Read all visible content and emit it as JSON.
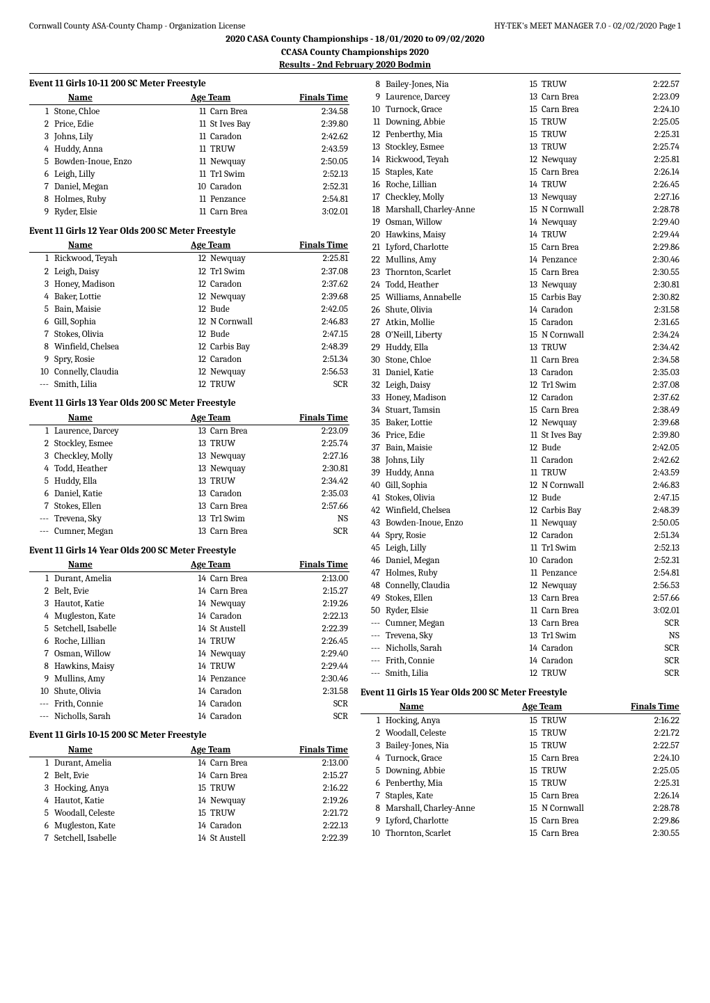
{
  "header": {
    "top_left": "Cornwall County ASA-County Champ - Organization License",
    "top_right": "HY-TEK's MEET MANAGER 7.0 - 02/02/2020  Page 1",
    "line1": "2020 CASA County Championships - 18/01/2020 to 09/02/2020",
    "line2": "CCASA County Championships 2020",
    "line3": "Results - 2nd February 2020 Bodmin"
  },
  "headers": {
    "name": "Name",
    "ageteam": "Age Team",
    "time": "Finals Time"
  },
  "left_events": [
    {
      "title": "Event 11  Girls 10-11 200 SC Meter Freestyle",
      "rows": [
        {
          "r": "1",
          "n": "Stone, Chloe",
          "a": "11",
          "t": "Carn Brea",
          "x": "2:34.58"
        },
        {
          "r": "2",
          "n": "Price, Edie",
          "a": "11",
          "t": "St Ives Bay",
          "x": "2:39.80"
        },
        {
          "r": "3",
          "n": "Johns, Lily",
          "a": "11",
          "t": "Caradon",
          "x": "2:42.62"
        },
        {
          "r": "4",
          "n": "Huddy, Anna",
          "a": "11",
          "t": "TRUW",
          "x": "2:43.59"
        },
        {
          "r": "5",
          "n": "Bowden-Inoue, Enzo",
          "a": "11",
          "t": "Newquay",
          "x": "2:50.05"
        },
        {
          "r": "6",
          "n": "Leigh, Lilly",
          "a": "11",
          "t": "Tr1 Swim",
          "x": "2:52.13"
        },
        {
          "r": "7",
          "n": "Daniel, Megan",
          "a": "10",
          "t": "Caradon",
          "x": "2:52.31"
        },
        {
          "r": "8",
          "n": "Holmes, Ruby",
          "a": "11",
          "t": "Penzance",
          "x": "2:54.81"
        },
        {
          "r": "9",
          "n": "Ryder, Elsie",
          "a": "11",
          "t": "Carn Brea",
          "x": "3:02.01"
        }
      ]
    },
    {
      "title": "Event 11  Girls 12 Year Olds 200 SC Meter Freestyle",
      "rows": [
        {
          "r": "1",
          "n": "Rickwood, Teyah",
          "a": "12",
          "t": "Newquay",
          "x": "2:25.81"
        },
        {
          "r": "2",
          "n": "Leigh, Daisy",
          "a": "12",
          "t": "Tr1 Swim",
          "x": "2:37.08"
        },
        {
          "r": "3",
          "n": "Honey, Madison",
          "a": "12",
          "t": "Caradon",
          "x": "2:37.62"
        },
        {
          "r": "4",
          "n": "Baker, Lottie",
          "a": "12",
          "t": "Newquay",
          "x": "2:39.68"
        },
        {
          "r": "5",
          "n": "Bain, Maisie",
          "a": "12",
          "t": "Bude",
          "x": "2:42.05"
        },
        {
          "r": "6",
          "n": "Gill, Sophia",
          "a": "12",
          "t": "N Cornwall",
          "x": "2:46.83"
        },
        {
          "r": "7",
          "n": "Stokes, Olivia",
          "a": "12",
          "t": "Bude",
          "x": "2:47.15"
        },
        {
          "r": "8",
          "n": "Winfield, Chelsea",
          "a": "12",
          "t": "Carbis Bay",
          "x": "2:48.39"
        },
        {
          "r": "9",
          "n": "Spry, Rosie",
          "a": "12",
          "t": "Caradon",
          "x": "2:51.34"
        },
        {
          "r": "10",
          "n": "Connelly, Claudia",
          "a": "12",
          "t": "Newquay",
          "x": "2:56.53"
        },
        {
          "r": "---",
          "n": "Smith, Lilia",
          "a": "12",
          "t": "TRUW",
          "x": "SCR"
        }
      ]
    },
    {
      "title": "Event 11  Girls 13 Year Olds 200 SC Meter Freestyle",
      "rows": [
        {
          "r": "1",
          "n": "Laurence, Darcey",
          "a": "13",
          "t": "Carn Brea",
          "x": "2:23.09"
        },
        {
          "r": "2",
          "n": "Stockley, Esmee",
          "a": "13",
          "t": "TRUW",
          "x": "2:25.74"
        },
        {
          "r": "3",
          "n": "Checkley, Molly",
          "a": "13",
          "t": "Newquay",
          "x": "2:27.16"
        },
        {
          "r": "4",
          "n": "Todd, Heather",
          "a": "13",
          "t": "Newquay",
          "x": "2:30.81"
        },
        {
          "r": "5",
          "n": "Huddy, Ella",
          "a": "13",
          "t": "TRUW",
          "x": "2:34.42"
        },
        {
          "r": "6",
          "n": "Daniel, Katie",
          "a": "13",
          "t": "Caradon",
          "x": "2:35.03"
        },
        {
          "r": "7",
          "n": "Stokes, Ellen",
          "a": "13",
          "t": "Carn Brea",
          "x": "2:57.66"
        },
        {
          "r": "---",
          "n": "Trevena, Sky",
          "a": "13",
          "t": "Tr1 Swim",
          "x": "NS"
        },
        {
          "r": "---",
          "n": "Cumner, Megan",
          "a": "13",
          "t": "Carn Brea",
          "x": "SCR"
        }
      ]
    },
    {
      "title": "Event 11  Girls 14 Year Olds 200 SC Meter Freestyle",
      "rows": [
        {
          "r": "1",
          "n": "Durant, Amelia",
          "a": "14",
          "t": "Carn Brea",
          "x": "2:13.00"
        },
        {
          "r": "2",
          "n": "Belt, Evie",
          "a": "14",
          "t": "Carn Brea",
          "x": "2:15.27"
        },
        {
          "r": "3",
          "n": "Hautot, Katie",
          "a": "14",
          "t": "Newquay",
          "x": "2:19.26"
        },
        {
          "r": "4",
          "n": "Mugleston, Kate",
          "a": "14",
          "t": "Caradon",
          "x": "2:22.13"
        },
        {
          "r": "5",
          "n": "Setchell, Isabelle",
          "a": "14",
          "t": "St Austell",
          "x": "2:22.39"
        },
        {
          "r": "6",
          "n": "Roche, Lillian",
          "a": "14",
          "t": "TRUW",
          "x": "2:26.45"
        },
        {
          "r": "7",
          "n": "Osman, Willow",
          "a": "14",
          "t": "Newquay",
          "x": "2:29.40"
        },
        {
          "r": "8",
          "n": "Hawkins, Maisy",
          "a": "14",
          "t": "TRUW",
          "x": "2:29.44"
        },
        {
          "r": "9",
          "n": "Mullins, Amy",
          "a": "14",
          "t": "Penzance",
          "x": "2:30.46"
        },
        {
          "r": "10",
          "n": "Shute, Olivia",
          "a": "14",
          "t": "Caradon",
          "x": "2:31.58"
        },
        {
          "r": "---",
          "n": "Frith, Connie",
          "a": "14",
          "t": "Caradon",
          "x": "SCR"
        },
        {
          "r": "---",
          "n": "Nicholls, Sarah",
          "a": "14",
          "t": "Caradon",
          "x": "SCR"
        }
      ]
    },
    {
      "title": "Event 11  Girls 10-15 200 SC Meter Freestyle",
      "rows": [
        {
          "r": "1",
          "n": "Durant, Amelia",
          "a": "14",
          "t": "Carn Brea",
          "x": "2:13.00"
        },
        {
          "r": "2",
          "n": "Belt, Evie",
          "a": "14",
          "t": "Carn Brea",
          "x": "2:15.27"
        },
        {
          "r": "3",
          "n": "Hocking, Anya",
          "a": "15",
          "t": "TRUW",
          "x": "2:16.22"
        },
        {
          "r": "4",
          "n": "Hautot, Katie",
          "a": "14",
          "t": "Newquay",
          "x": "2:19.26"
        },
        {
          "r": "5",
          "n": "Woodall, Celeste",
          "a": "15",
          "t": "TRUW",
          "x": "2:21.72"
        },
        {
          "r": "6",
          "n": "Mugleston, Kate",
          "a": "14",
          "t": "Caradon",
          "x": "2:22.13"
        },
        {
          "r": "7",
          "n": "Setchell, Isabelle",
          "a": "14",
          "t": "St Austell",
          "x": "2:22.39"
        }
      ]
    }
  ],
  "right_top_rows": [
    {
      "r": "8",
      "n": "Bailey-Jones, Nia",
      "a": "15",
      "t": "TRUW",
      "x": "2:22.57"
    },
    {
      "r": "9",
      "n": "Laurence, Darcey",
      "a": "13",
      "t": "Carn Brea",
      "x": "2:23.09"
    },
    {
      "r": "10",
      "n": "Turnock, Grace",
      "a": "15",
      "t": "Carn Brea",
      "x": "2:24.10"
    },
    {
      "r": "11",
      "n": "Downing, Abbie",
      "a": "15",
      "t": "TRUW",
      "x": "2:25.05"
    },
    {
      "r": "12",
      "n": "Penberthy, Mia",
      "a": "15",
      "t": "TRUW",
      "x": "2:25.31"
    },
    {
      "r": "13",
      "n": "Stockley, Esmee",
      "a": "13",
      "t": "TRUW",
      "x": "2:25.74"
    },
    {
      "r": "14",
      "n": "Rickwood, Teyah",
      "a": "12",
      "t": "Newquay",
      "x": "2:25.81"
    },
    {
      "r": "15",
      "n": "Staples, Kate",
      "a": "15",
      "t": "Carn Brea",
      "x": "2:26.14"
    },
    {
      "r": "16",
      "n": "Roche, Lillian",
      "a": "14",
      "t": "TRUW",
      "x": "2:26.45"
    },
    {
      "r": "17",
      "n": "Checkley, Molly",
      "a": "13",
      "t": "Newquay",
      "x": "2:27.16"
    },
    {
      "r": "18",
      "n": "Marshall, Charley-Anne",
      "a": "15",
      "t": "N Cornwall",
      "x": "2:28.78"
    },
    {
      "r": "19",
      "n": "Osman, Willow",
      "a": "14",
      "t": "Newquay",
      "x": "2:29.40"
    },
    {
      "r": "20",
      "n": "Hawkins, Maisy",
      "a": "14",
      "t": "TRUW",
      "x": "2:29.44"
    },
    {
      "r": "21",
      "n": "Lyford, Charlotte",
      "a": "15",
      "t": "Carn Brea",
      "x": "2:29.86"
    },
    {
      "r": "22",
      "n": "Mullins, Amy",
      "a": "14",
      "t": "Penzance",
      "x": "2:30.46"
    },
    {
      "r": "23",
      "n": "Thornton, Scarlet",
      "a": "15",
      "t": "Carn Brea",
      "x": "2:30.55"
    },
    {
      "r": "24",
      "n": "Todd, Heather",
      "a": "13",
      "t": "Newquay",
      "x": "2:30.81"
    },
    {
      "r": "25",
      "n": "Williams, Annabelle",
      "a": "15",
      "t": "Carbis Bay",
      "x": "2:30.82"
    },
    {
      "r": "26",
      "n": "Shute, Olivia",
      "a": "14",
      "t": "Caradon",
      "x": "2:31.58"
    },
    {
      "r": "27",
      "n": "Atkin, Mollie",
      "a": "15",
      "t": "Caradon",
      "x": "2:31.65"
    },
    {
      "r": "28",
      "n": "O'Neill, Liberty",
      "a": "15",
      "t": "N Cornwall",
      "x": "2:34.24"
    },
    {
      "r": "29",
      "n": "Huddy, Ella",
      "a": "13",
      "t": "TRUW",
      "x": "2:34.42"
    },
    {
      "r": "30",
      "n": "Stone, Chloe",
      "a": "11",
      "t": "Carn Brea",
      "x": "2:34.58"
    },
    {
      "r": "31",
      "n": "Daniel, Katie",
      "a": "13",
      "t": "Caradon",
      "x": "2:35.03"
    },
    {
      "r": "32",
      "n": "Leigh, Daisy",
      "a": "12",
      "t": "Tr1 Swim",
      "x": "2:37.08"
    },
    {
      "r": "33",
      "n": "Honey, Madison",
      "a": "12",
      "t": "Caradon",
      "x": "2:37.62"
    },
    {
      "r": "34",
      "n": "Stuart, Tamsin",
      "a": "15",
      "t": "Carn Brea",
      "x": "2:38.49"
    },
    {
      "r": "35",
      "n": "Baker, Lottie",
      "a": "12",
      "t": "Newquay",
      "x": "2:39.68"
    },
    {
      "r": "36",
      "n": "Price, Edie",
      "a": "11",
      "t": "St Ives Bay",
      "x": "2:39.80"
    },
    {
      "r": "37",
      "n": "Bain, Maisie",
      "a": "12",
      "t": "Bude",
      "x": "2:42.05"
    },
    {
      "r": "38",
      "n": "Johns, Lily",
      "a": "11",
      "t": "Caradon",
      "x": "2:42.62"
    },
    {
      "r": "39",
      "n": "Huddy, Anna",
      "a": "11",
      "t": "TRUW",
      "x": "2:43.59"
    },
    {
      "r": "40",
      "n": "Gill, Sophia",
      "a": "12",
      "t": "N Cornwall",
      "x": "2:46.83"
    },
    {
      "r": "41",
      "n": "Stokes, Olivia",
      "a": "12",
      "t": "Bude",
      "x": "2:47.15"
    },
    {
      "r": "42",
      "n": "Winfield, Chelsea",
      "a": "12",
      "t": "Carbis Bay",
      "x": "2:48.39"
    },
    {
      "r": "43",
      "n": "Bowden-Inoue, Enzo",
      "a": "11",
      "t": "Newquay",
      "x": "2:50.05"
    },
    {
      "r": "44",
      "n": "Spry, Rosie",
      "a": "12",
      "t": "Caradon",
      "x": "2:51.34"
    },
    {
      "r": "45",
      "n": "Leigh, Lilly",
      "a": "11",
      "t": "Tr1 Swim",
      "x": "2:52.13"
    },
    {
      "r": "46",
      "n": "Daniel, Megan",
      "a": "10",
      "t": "Caradon",
      "x": "2:52.31"
    },
    {
      "r": "47",
      "n": "Holmes, Ruby",
      "a": "11",
      "t": "Penzance",
      "x": "2:54.81"
    },
    {
      "r": "48",
      "n": "Connelly, Claudia",
      "a": "12",
      "t": "Newquay",
      "x": "2:56.53"
    },
    {
      "r": "49",
      "n": "Stokes, Ellen",
      "a": "13",
      "t": "Carn Brea",
      "x": "2:57.66"
    },
    {
      "r": "50",
      "n": "Ryder, Elsie",
      "a": "11",
      "t": "Carn Brea",
      "x": "3:02.01"
    },
    {
      "r": "---",
      "n": "Cumner, Megan",
      "a": "13",
      "t": "Carn Brea",
      "x": "SCR"
    },
    {
      "r": "---",
      "n": "Trevena, Sky",
      "a": "13",
      "t": "Tr1 Swim",
      "x": "NS"
    },
    {
      "r": "---",
      "n": "Nicholls, Sarah",
      "a": "14",
      "t": "Caradon",
      "x": "SCR"
    },
    {
      "r": "---",
      "n": "Frith, Connie",
      "a": "14",
      "t": "Caradon",
      "x": "SCR"
    },
    {
      "r": "---",
      "n": "Smith, Lilia",
      "a": "12",
      "t": "TRUW",
      "x": "SCR"
    }
  ],
  "right_events": [
    {
      "title": "Event 11  Girls 15 Year Olds 200 SC Meter Freestyle",
      "rows": [
        {
          "r": "1",
          "n": "Hocking, Anya",
          "a": "15",
          "t": "TRUW",
          "x": "2:16.22"
        },
        {
          "r": "2",
          "n": "Woodall, Celeste",
          "a": "15",
          "t": "TRUW",
          "x": "2:21.72"
        },
        {
          "r": "3",
          "n": "Bailey-Jones, Nia",
          "a": "15",
          "t": "TRUW",
          "x": "2:22.57"
        },
        {
          "r": "4",
          "n": "Turnock, Grace",
          "a": "15",
          "t": "Carn Brea",
          "x": "2:24.10"
        },
        {
          "r": "5",
          "n": "Downing, Abbie",
          "a": "15",
          "t": "TRUW",
          "x": "2:25.05"
        },
        {
          "r": "6",
          "n": "Penberthy, Mia",
          "a": "15",
          "t": "TRUW",
          "x": "2:25.31"
        },
        {
          "r": "7",
          "n": "Staples, Kate",
          "a": "15",
          "t": "Carn Brea",
          "x": "2:26.14"
        },
        {
          "r": "8",
          "n": "Marshall, Charley-Anne",
          "a": "15",
          "t": "N Cornwall",
          "x": "2:28.78"
        },
        {
          "r": "9",
          "n": "Lyford, Charlotte",
          "a": "15",
          "t": "Carn Brea",
          "x": "2:29.86"
        },
        {
          "r": "10",
          "n": "Thornton, Scarlet",
          "a": "15",
          "t": "Carn Brea",
          "x": "2:30.55"
        }
      ]
    }
  ]
}
